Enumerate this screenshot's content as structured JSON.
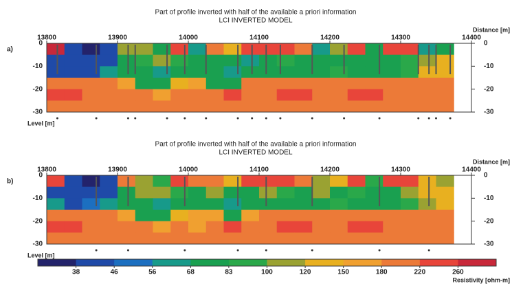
{
  "chart_data": [
    {
      "type": "section",
      "panel_label": "a)",
      "title": "Part of profile inverted with half of the available a priori information",
      "subtitle": "LCI INVERTED MODEL",
      "xlabel": "Distance [m]",
      "ylabel": "Level [m]",
      "xlim": [
        13800,
        14400
      ],
      "xticks": [
        13800,
        13900,
        14000,
        14100,
        14200,
        14300,
        14400
      ],
      "ylim": [
        -30,
        0
      ],
      "yticks": [
        0,
        -10,
        -20,
        -30
      ],
      "x": [
        13800,
        13825,
        13850,
        13875,
        13900,
        13925,
        13950,
        13975,
        14000,
        14025,
        14050,
        14075,
        14100,
        14125,
        14150,
        14175,
        14200,
        14225,
        14250,
        14275,
        14300,
        14325,
        14350,
        14375
      ],
      "depth": [
        0,
        -5,
        -10,
        -15,
        -20,
        -25
      ],
      "values": [
        [
          260,
          40,
          36,
          40,
          110,
          100,
          70,
          230,
          60,
          200,
          120,
          230,
          250,
          240,
          200,
          60,
          110,
          240,
          70,
          230,
          240,
          60,
          80,
          null
        ],
        [
          45,
          44,
          40,
          45,
          70,
          90,
          110,
          90,
          75,
          70,
          75,
          60,
          70,
          90,
          80,
          75,
          70,
          75,
          70,
          75,
          90,
          110,
          120,
          null
        ],
        [
          45,
          42,
          45,
          60,
          70,
          75,
          65,
          70,
          75,
          70,
          65,
          70,
          75,
          80,
          70,
          75,
          90,
          75,
          70,
          75,
          90,
          120,
          130,
          null
        ],
        [
          200,
          200,
          200,
          190,
          160,
          70,
          70,
          140,
          160,
          70,
          75,
          180,
          200,
          190,
          180,
          200,
          210,
          200,
          200,
          200,
          200,
          200,
          200,
          null
        ],
        [
          220,
          220,
          210,
          200,
          200,
          190,
          170,
          200,
          200,
          210,
          220,
          200,
          210,
          220,
          220,
          210,
          200,
          220,
          220,
          200,
          210,
          200,
          210,
          null
        ],
        [
          210,
          210,
          210,
          210,
          200,
          200,
          200,
          210,
          210,
          210,
          210,
          210,
          210,
          210,
          210,
          210,
          210,
          210,
          210,
          210,
          210,
          210,
          210,
          null
        ]
      ],
      "markers": [
        13815,
        13870,
        13915,
        13925,
        13970,
        13995,
        14025,
        14070,
        14090,
        14110,
        14130,
        14175,
        14220,
        14270,
        14325,
        14340,
        14350,
        14370
      ]
    },
    {
      "type": "section",
      "panel_label": "b)",
      "title": "Part of profile inverted with half of the available a priori information",
      "subtitle": "LCI INVERTED MODEL",
      "xlabel": "Distance [m]",
      "ylabel": "Level [m]",
      "xlim": [
        13800,
        14400
      ],
      "xticks": [
        13800,
        13900,
        14000,
        14100,
        14200,
        14300,
        14400
      ],
      "ylim": [
        -30,
        0
      ],
      "yticks": [
        0,
        -10,
        -20,
        -30
      ],
      "x": [
        13800,
        13825,
        13850,
        13875,
        13900,
        13925,
        13950,
        13975,
        14000,
        14025,
        14050,
        14075,
        14100,
        14125,
        14150,
        14175,
        14200,
        14225,
        14250,
        14275,
        14300,
        14325,
        14350,
        14375
      ],
      "depth": [
        0,
        -5,
        -10,
        -15,
        -20,
        -25
      ],
      "values": [
        [
          250,
          40,
          36,
          45,
          200,
          110,
          90,
          230,
          210,
          200,
          130,
          240,
          250,
          240,
          200,
          110,
          120,
          240,
          90,
          230,
          240,
          120,
          100,
          null
        ],
        [
          45,
          44,
          42,
          45,
          70,
          100,
          110,
          90,
          75,
          110,
          75,
          70,
          110,
          90,
          80,
          110,
          70,
          90,
          70,
          75,
          110,
          120,
          120,
          null
        ],
        [
          60,
          45,
          50,
          65,
          70,
          75,
          65,
          70,
          75,
          70,
          65,
          70,
          75,
          80,
          70,
          75,
          90,
          75,
          70,
          75,
          90,
          110,
          130,
          null
        ],
        [
          200,
          200,
          190,
          190,
          160,
          70,
          70,
          140,
          150,
          160,
          75,
          170,
          200,
          190,
          180,
          200,
          210,
          200,
          200,
          200,
          200,
          200,
          200,
          null
        ],
        [
          220,
          220,
          210,
          200,
          200,
          190,
          170,
          200,
          160,
          210,
          220,
          200,
          210,
          220,
          220,
          210,
          200,
          220,
          220,
          200,
          210,
          200,
          210,
          null
        ],
        [
          210,
          210,
          210,
          210,
          200,
          200,
          200,
          210,
          180,
          210,
          210,
          210,
          210,
          210,
          210,
          210,
          210,
          210,
          210,
          210,
          210,
          210,
          210,
          null
        ]
      ],
      "markers": [
        13870,
        13915,
        13995,
        14070,
        14110,
        14175,
        14270,
        14340
      ]
    },
    {
      "type": "colorbar",
      "label": "Resistivity [ohm-m]",
      "ticks": [
        38,
        46,
        56,
        68,
        83,
        100,
        120,
        150,
        180,
        220,
        260
      ],
      "colors": [
        "#23236b",
        "#1f4aa8",
        "#1c6fc0",
        "#179a8a",
        "#1aa050",
        "#2aa84a",
        "#9aa232",
        "#e8b020",
        "#f0a030",
        "#ec7a38",
        "#e8453a",
        "#c8283a"
      ]
    }
  ]
}
